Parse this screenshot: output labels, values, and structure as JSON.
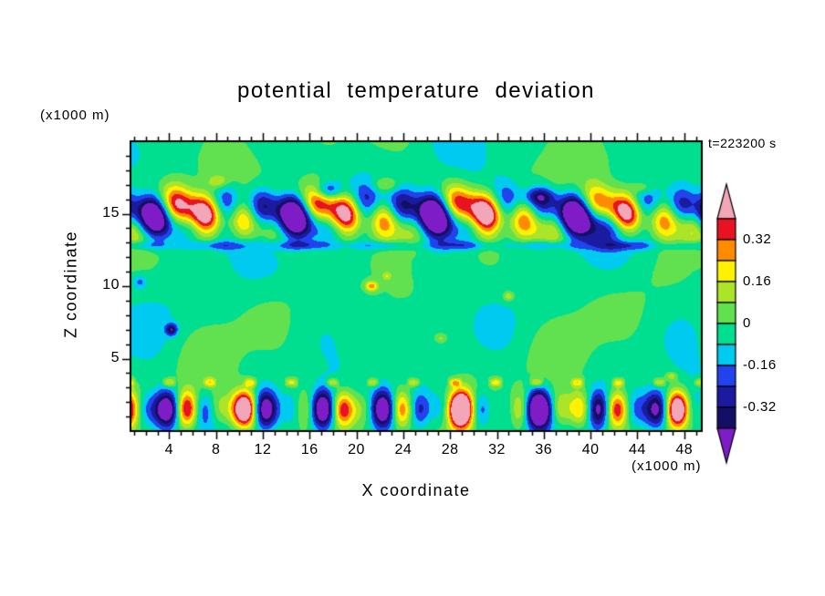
{
  "chart_data": {
    "type": "heatmap",
    "title": "potential temperature deviation",
    "timestamp": "t=223200 s",
    "xlabel": "X coordinate",
    "ylabel": "Z coordinate",
    "x_unit": "(x1000 m)",
    "y_unit": "(x1000 m)",
    "xlim": [
      0.7,
      49.5
    ],
    "ylim": [
      0,
      20
    ],
    "x_ticks": [
      4,
      8,
      12,
      16,
      20,
      24,
      28,
      32,
      36,
      40,
      44,
      48
    ],
    "y_ticks": [
      5,
      10,
      15
    ],
    "x_minor_step": 1,
    "y_minor_step": 1,
    "grid": false,
    "legend_position": "right-colorbar",
    "contour_interval": 0.08,
    "levels": [
      -0.4,
      -0.32,
      -0.24,
      -0.16,
      -0.08,
      0,
      0.08,
      0.16,
      0.24,
      0.32,
      0.4
    ],
    "colorbar": {
      "labels": [
        "0.32",
        "0.16",
        "0",
        "-0.16",
        "-0.32"
      ],
      "label_values": [
        0.32,
        0.16,
        0,
        -0.16,
        -0.32
      ],
      "segment_colors_top_to_bottom": [
        "#E81220",
        "#FF8C00",
        "#FFF200",
        "#ACE428",
        "#62E150",
        "#00DF90",
        "#00CAF0",
        "#2142EC",
        "#1A1B9E",
        "#140F66"
      ],
      "arrow_top_color": "#F3A6B8",
      "arrow_bottom_color": "#7E1CC8"
    },
    "field_model": {
      "background": -0.03,
      "mid_amp": 0.048,
      "upper_band": {
        "z_center": 15.0,
        "z_width": 1.6,
        "amp": 0.4
      },
      "sub_layer": {
        "z_center": 12.8,
        "z_width": 0.32,
        "amp": 0.17
      },
      "lower_band": {
        "z_center": 1.5,
        "z_width": 1.25,
        "amp": 0.35
      },
      "surface_row": {
        "z_center": 3.35,
        "z_width": 0.3,
        "amp": 0.34
      },
      "bumps": [
        [
          21.3,
          10.0,
          0.3,
          0.55,
          0.35
        ],
        [
          22.6,
          10.7,
          0.16,
          0.4,
          0.3
        ],
        [
          33.0,
          9.3,
          0.19,
          0.5,
          0.35
        ],
        [
          27.2,
          6.4,
          0.14,
          0.55,
          0.35
        ],
        [
          4.2,
          7.0,
          -0.34,
          0.5,
          0.4
        ],
        [
          1.5,
          10.3,
          -0.16,
          0.6,
          0.45
        ],
        [
          17.6,
          16.6,
          -0.27,
          1.1,
          0.6
        ],
        [
          35.6,
          16.2,
          -0.24,
          1.3,
          0.6
        ],
        [
          8.2,
          17.2,
          0.18,
          0.9,
          0.5
        ],
        [
          22.5,
          17.0,
          0.17,
          1.2,
          0.5
        ],
        [
          44.5,
          16.8,
          0.18,
          1.0,
          0.5
        ],
        [
          46.9,
          3.8,
          0.18,
          0.5,
          0.3
        ]
      ]
    },
    "features": [
      "strong wave layer near z = 13-17 with alternating warm cores (pink/red/orange/yellow) and cold cores (cyan/blue/navy/purple)",
      "turbulent layer near z = 0-3 with alternating warm and cold cells",
      "thin broken cyan (negative) layer near z = 12.8",
      "mid levels mostly weak deviations shown as mottled light/spring greens with isolated small warm and cold spots"
    ]
  }
}
